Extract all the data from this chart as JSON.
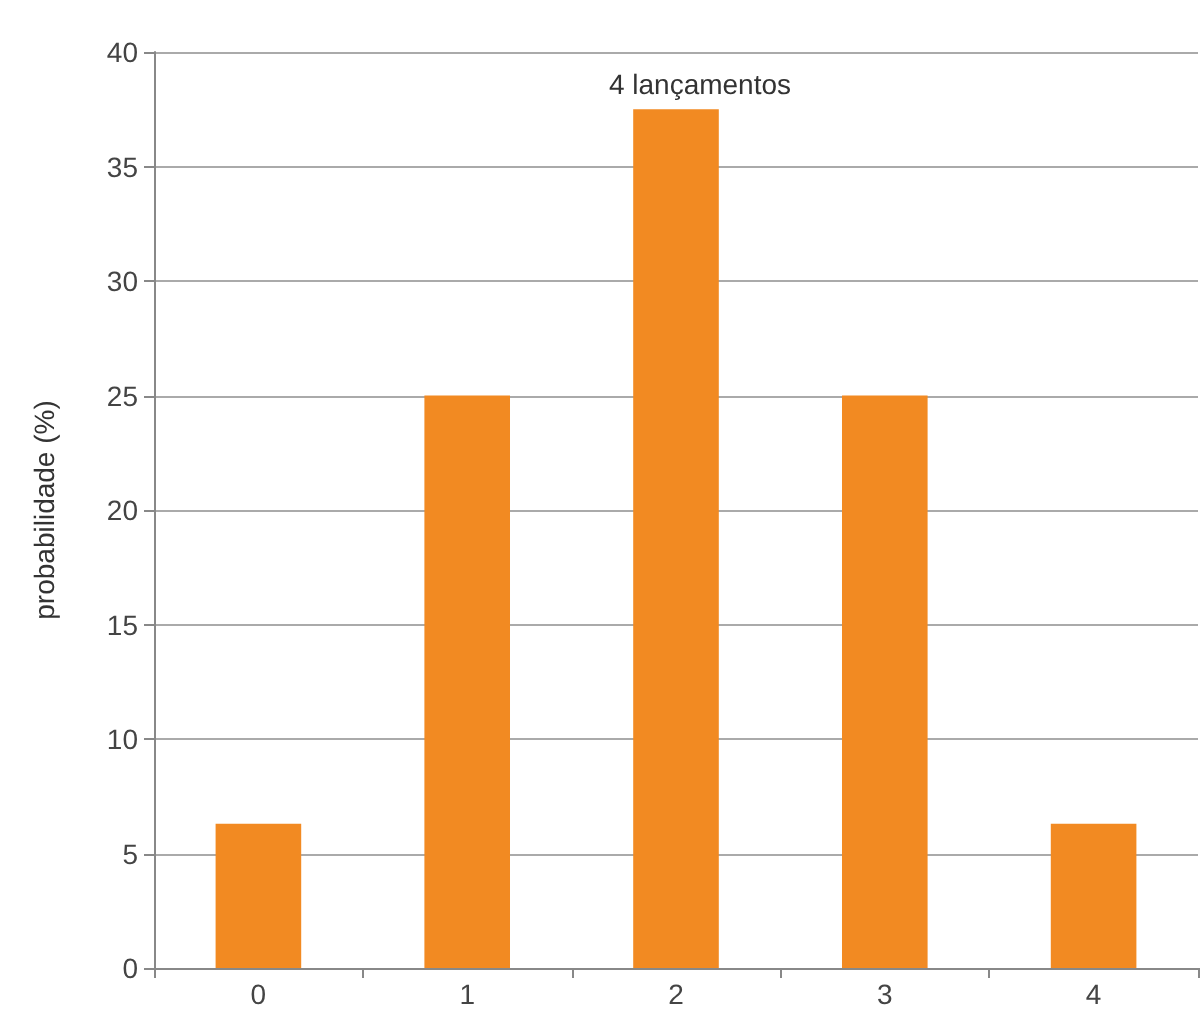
{
  "chart_data": {
    "type": "bar",
    "title": "4 lançamentos",
    "ylabel": "probabilidade (%)",
    "categories": [
      "0",
      "1",
      "2",
      "3",
      "4"
    ],
    "values": [
      6.3,
      25,
      37.5,
      25,
      6.3
    ],
    "color": "#f28a22",
    "ylim": [
      0,
      40
    ],
    "yticks": [
      0,
      5,
      10,
      15,
      20,
      25,
      30,
      35,
      40
    ],
    "grid": "y"
  }
}
